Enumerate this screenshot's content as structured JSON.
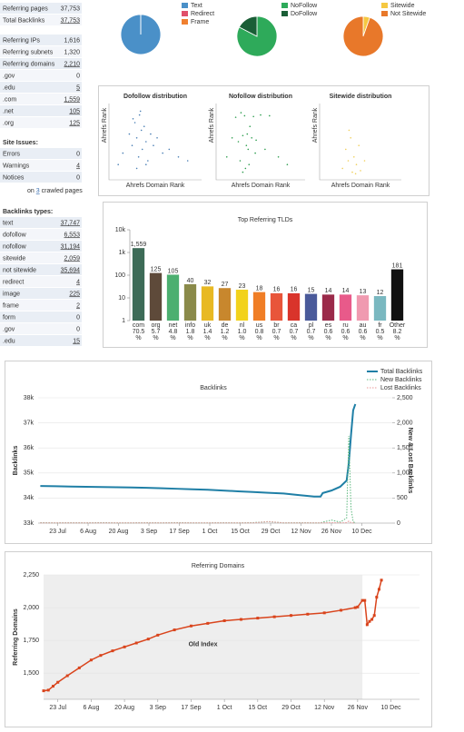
{
  "sidebar": {
    "groups": [
      {
        "rows": [
          [
            "Referring pages",
            "37,753"
          ],
          [
            "Total Backlinks",
            "37,753"
          ]
        ]
      },
      {
        "rows": [
          [
            "Referring IPs",
            "1,616"
          ],
          [
            "Referring subnets",
            "1,320"
          ],
          [
            "Referring domains",
            "2,210"
          ],
          [
            ".gov",
            "0"
          ],
          [
            ".edu",
            "5"
          ],
          [
            ".com",
            "1,559"
          ],
          [
            ".net",
            "105"
          ],
          [
            ".org",
            "125"
          ]
        ]
      },
      {
        "title": "Site Issues:",
        "rows": [
          [
            "Errors",
            "0"
          ],
          [
            "Warnings",
            "4"
          ],
          [
            "Notices",
            "0"
          ]
        ],
        "note": [
          "on",
          "3",
          "crawled pages"
        ]
      },
      {
        "title": "Backlinks types:",
        "rows": [
          [
            "text",
            "37,747"
          ],
          [
            "dofollow",
            "6,553"
          ],
          [
            "nofollow",
            "31,194"
          ],
          [
            "sitewide",
            "2,059"
          ],
          [
            "not sitewide",
            "35,694"
          ],
          [
            "redirect",
            "4"
          ],
          [
            "image",
            "225"
          ],
          [
            "frame",
            "2"
          ],
          [
            "form",
            "0"
          ],
          [
            ".gov",
            "0"
          ],
          [
            ".edu",
            "15"
          ]
        ]
      }
    ]
  },
  "chart_data": [
    {
      "type": "pie",
      "categories": [
        "Text",
        "Redirect",
        "Frame"
      ],
      "values": [
        37747,
        4,
        2
      ],
      "colors": [
        "#4a90c8",
        "#e0506a",
        "#f08030"
      ]
    },
    {
      "type": "pie",
      "categories": [
        "NoFollow",
        "DoFollow"
      ],
      "values": [
        31194,
        6553
      ],
      "colors": [
        "#2eaa5a",
        "#1a5e36"
      ]
    },
    {
      "type": "pie",
      "categories": [
        "Sitewide",
        "Not Sitewide"
      ],
      "values": [
        2059,
        35694
      ],
      "colors": [
        "#f5c842",
        "#e8782a"
      ]
    },
    {
      "type": "scatter",
      "title": "Dofollow distribution",
      "xlabel": "Ahrefs Domain Rank",
      "ylabel": "Ahrefs Rank",
      "color": "#4a7fb5",
      "xlim": [
        0,
        100
      ],
      "ylim": [
        0,
        100
      ],
      "x": [
        10,
        15,
        22,
        25,
        28,
        30,
        32,
        33,
        35,
        36,
        38,
        40,
        42,
        45,
        48,
        52,
        58,
        65,
        75,
        85,
        30,
        34,
        26,
        40
      ],
      "y": [
        20,
        35,
        60,
        45,
        75,
        55,
        30,
        85,
        65,
        40,
        70,
        50,
        25,
        60,
        45,
        55,
        35,
        40,
        30,
        25,
        15,
        90,
        80,
        20
      ]
    },
    {
      "type": "scatter",
      "title": "Nofollow distribution",
      "xlabel": "Ahrefs Domain Rank",
      "ylabel": "Ahrefs Rank",
      "color": "#2e9e4f",
      "xlim": [
        0,
        100
      ],
      "ylim": [
        0,
        100
      ],
      "x": [
        12,
        18,
        22,
        25,
        27,
        30,
        32,
        34,
        35,
        37,
        40,
        42,
        45,
        50,
        55,
        60,
        70,
        80,
        28,
        33,
        38,
        44,
        30,
        36
      ],
      "y": [
        30,
        55,
        82,
        50,
        25,
        58,
        84,
        45,
        60,
        20,
        55,
        83,
        52,
        85,
        40,
        84,
        30,
        20,
        88,
        15,
        70,
        35,
        10,
        40
      ]
    },
    {
      "type": "scatter",
      "title": "Sitewide distribution",
      "xlabel": "Ahrefs Domain Rank",
      "ylabel": "Ahrefs Rank",
      "color": "#f0cf5a",
      "xlim": [
        0,
        100
      ],
      "ylim": [
        0,
        100
      ],
      "x": [
        28,
        32,
        35,
        38,
        40,
        42,
        45,
        48,
        50,
        55,
        36,
        44
      ],
      "y": [
        15,
        40,
        25,
        55,
        10,
        30,
        20,
        45,
        12,
        25,
        65,
        8
      ]
    },
    {
      "type": "bar",
      "title": "Top Referring TLDs",
      "log_scale": true,
      "grid": false,
      "categories": [
        "com",
        "org",
        "net",
        "info",
        "uk",
        "de",
        "nl",
        "us",
        "br",
        "ca",
        "pl",
        "es",
        "ru",
        "au",
        "fr",
        "Other"
      ],
      "values": [
        1559,
        125,
        105,
        40,
        32,
        27,
        23,
        18,
        16,
        16,
        15,
        14,
        14,
        13,
        12,
        181
      ],
      "value_labels": [
        "1,559",
        "125",
        "105",
        "40",
        "32",
        "27",
        "23",
        "18",
        "16",
        "16",
        "15",
        "14",
        "14",
        "13",
        "12",
        "181"
      ],
      "percent_labels": [
        "70.5",
        "5.7",
        "4.8",
        "1.8",
        "1.4",
        "1.2",
        "1.0",
        "0.8",
        "0.7",
        "0.7",
        "0.7",
        "0.6",
        "0.6",
        "0.6",
        "0.5",
        "8.2"
      ],
      "percent_unit": "%",
      "colors": [
        "#3d6b57",
        "#5e4a3a",
        "#4caf70",
        "#8a8a4a",
        "#e8b923",
        "#c8872d",
        "#f2d21b",
        "#f07e26",
        "#e8553a",
        "#d9342b",
        "#4a5a9a",
        "#9b2a4a",
        "#e85a8a",
        "#f09ab0",
        "#7ab8c0",
        "#111111"
      ],
      "ylim": [
        1,
        10000
      ],
      "yticks": [
        1,
        10,
        100,
        {
          "value": 1000,
          "label": "1k"
        },
        {
          "value": 10000,
          "label": "10k"
        }
      ]
    },
    {
      "type": "line",
      "title": "Backlinks",
      "ylabel": "Backlinks",
      "ylabel_color": "#1a7aa0",
      "y2label": "New & Lost Backlinks",
      "y2label_color": "#b5451b",
      "grid": true,
      "legend": "upper right",
      "xlim": [
        "14 Jul",
        "24 Dec"
      ],
      "xticks": [
        "23 Jul",
        "6 Aug",
        "20 Aug",
        "3 Sep",
        "17 Sep",
        "1 Oct",
        "15 Oct",
        "29 Oct",
        "12 Nov",
        "26 Nov",
        "10 Dec"
      ],
      "ylim": [
        33000,
        38000
      ],
      "yticks": [
        {
          "value": 33000,
          "label": "33k"
        },
        {
          "value": 34000,
          "label": "34k"
        },
        {
          "value": 35000,
          "label": "35k"
        },
        {
          "value": 36000,
          "label": "36k"
        },
        {
          "value": 37000,
          "label": "37k"
        },
        {
          "value": 38000,
          "label": "38k"
        }
      ],
      "y2lim": [
        0,
        2500
      ],
      "y2ticks": [
        0,
        500,
        {
          "value": 1000,
          "label": "1,000"
        },
        {
          "value": 1500,
          "label": "1,500"
        },
        {
          "value": 2000,
          "label": "2,000"
        },
        {
          "value": 2500,
          "label": "2,500"
        }
      ],
      "x": [
        "15 Jul",
        "22 Jul",
        "29 Jul",
        "5 Aug",
        "12 Aug",
        "19 Aug",
        "26 Aug",
        "2 Sep",
        "9 Sep",
        "16 Sep",
        "23 Sep",
        "30 Sep",
        "7 Oct",
        "14 Oct",
        "21 Oct",
        "28 Oct",
        "4 Nov",
        "11 Nov",
        "18 Nov",
        "21 Nov",
        "22 Nov",
        "26 Nov",
        "30 Nov",
        "3 Dec",
        "4 Dec",
        "5 Dec",
        "6 Dec",
        "7 Dec"
      ],
      "series": [
        {
          "name": "Total Backlinks",
          "color": "#1f7fa6",
          "width": 2,
          "values": [
            34480,
            34470,
            34460,
            34450,
            34440,
            34430,
            34420,
            34410,
            34390,
            34370,
            34350,
            34330,
            34300,
            34270,
            34240,
            34210,
            34180,
            34120,
            34060,
            34060,
            34200,
            34300,
            34450,
            34700,
            35400,
            36500,
            37500,
            37750
          ]
        },
        {
          "name": "New Backlinks",
          "color": "#5cb87e",
          "width": 1,
          "dashed": true,
          "axis": "y2",
          "values": [
            10,
            5,
            8,
            5,
            10,
            5,
            5,
            8,
            5,
            10,
            5,
            5,
            8,
            5,
            10,
            30,
            5,
            8,
            5,
            5,
            20,
            60,
            20,
            100,
            1740,
            300,
            30,
            0
          ]
        },
        {
          "name": "Lost Backlinks",
          "color": "#e89a9a",
          "width": 1,
          "dashed": true,
          "axis": "y2",
          "values": [
            5,
            5,
            5,
            5,
            5,
            5,
            5,
            5,
            5,
            5,
            5,
            5,
            5,
            5,
            5,
            30,
            5,
            5,
            5,
            5,
            5,
            10,
            5,
            10,
            40,
            10,
            5,
            0
          ]
        }
      ]
    },
    {
      "type": "line",
      "title": "Referring Domains",
      "ylabel": "Referring Domains",
      "ylabel_color": "#c0392b",
      "grid": true,
      "xlim": [
        "17 Jul",
        "22 Dec"
      ],
      "xticks": [
        "23 Jul",
        "6 Aug",
        "20 Aug",
        "3 Sep",
        "17 Sep",
        "1 Oct",
        "15 Oct",
        "29 Oct",
        "12 Nov",
        "26 Nov",
        "10 Dec"
      ],
      "ylim": [
        1300,
        2250
      ],
      "yticks": [
        {
          "value": 1500,
          "label": "1,500"
        },
        {
          "value": 1750,
          "label": "1,750"
        },
        {
          "value": 2000,
          "label": "2,000"
        },
        {
          "value": 2250,
          "label": "2,250"
        }
      ],
      "shade": {
        "x": [
          "17 Jul",
          "28 Nov"
        ],
        "label": "Old Index",
        "label_color": "#2a8ab0"
      },
      "x": [
        "17 Jul",
        "19 Jul",
        "21 Jul",
        "23 Jul",
        "27 Jul",
        "1 Aug",
        "6 Aug",
        "10 Aug",
        "15 Aug",
        "20 Aug",
        "25 Aug",
        "30 Aug",
        "3 Sep",
        "10 Sep",
        "17 Sep",
        "24 Sep",
        "1 Oct",
        "8 Oct",
        "15 Oct",
        "22 Oct",
        "29 Oct",
        "5 Nov",
        "12 Nov",
        "19 Nov",
        "25 Nov",
        "26 Nov",
        "28 Nov",
        "29 Nov",
        "30 Nov",
        "1 Dec",
        "2 Dec",
        "3 Dec",
        "4 Dec",
        "5 Dec",
        "6 Dec"
      ],
      "series": [
        {
          "name": "Referring Domains",
          "color": "#d9441c",
          "width": 1.5,
          "markers": true,
          "values": [
            1365,
            1370,
            1400,
            1430,
            1480,
            1540,
            1600,
            1635,
            1670,
            1700,
            1730,
            1760,
            1790,
            1830,
            1860,
            1880,
            1900,
            1910,
            1920,
            1930,
            1940,
            1950,
            1960,
            1980,
            2000,
            2005,
            2055,
            2055,
            1870,
            1895,
            1910,
            1940,
            2080,
            2140,
            2210
          ]
        }
      ]
    }
  ]
}
